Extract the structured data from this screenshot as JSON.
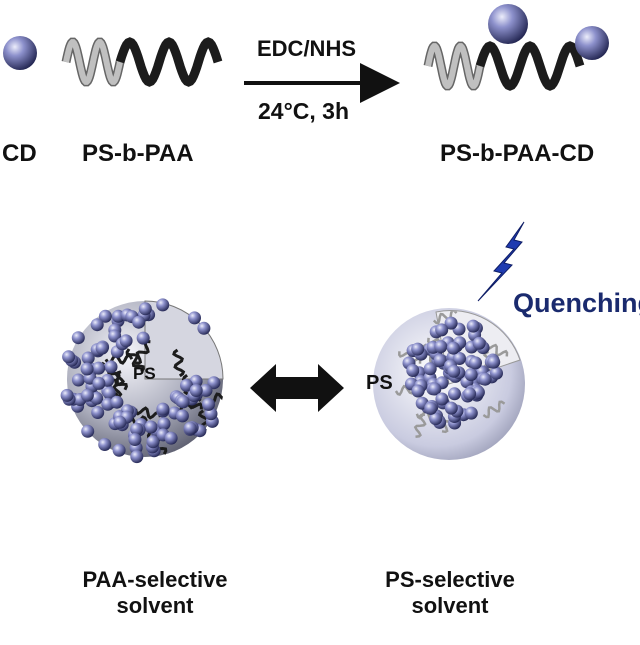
{
  "top": {
    "cd_label": "CD",
    "polymer_label": "PS-b-PAA",
    "reagent_label": "EDC/NHS",
    "condition_label": "24°C, 3h",
    "product_label": "PS-b-PAA-CD"
  },
  "left_micelle": {
    "core_label": "PS",
    "caption_line1": "PAA-selective",
    "caption_line2": "solvent"
  },
  "right_micelle": {
    "core_label": "PS",
    "effect_label": "Quenching",
    "caption_line1": "PS-selective",
    "caption_line2": "solvent"
  },
  "colors": {
    "sphere": "#6a6fae",
    "ps_chain": "#c0c0c0",
    "paa_chain": "#1c1c1c",
    "quenching": "#1a2a6e",
    "lightning": "#1f3bb0"
  }
}
